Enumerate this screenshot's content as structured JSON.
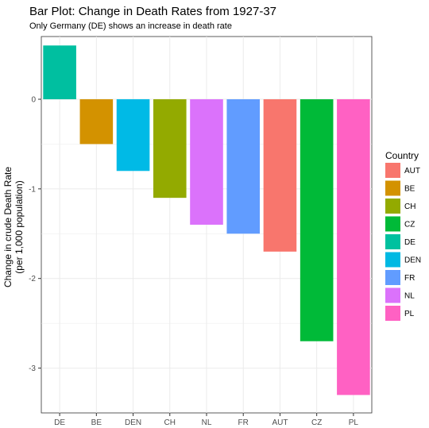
{
  "chart_data": {
    "type": "bar",
    "title": "Bar  Plot: Change in Death Rates from 1927-37",
    "subtitle": "Only Germany (DE) shows an increase in death rate",
    "ylabel_lines": [
      "Change in crude Death Rate",
      "(per 1,000 population)"
    ],
    "xlabel": "",
    "ylim": [
      -3.5,
      0.7
    ],
    "yticks": [
      0,
      -1,
      -2,
      -3
    ],
    "ytick_labels": [
      "0",
      "-1",
      "-2",
      "-3"
    ],
    "grid": true,
    "categories": [
      "DE",
      "BE",
      "DEN",
      "CH",
      "NL",
      "FR",
      "AUT",
      "CZ",
      "PL"
    ],
    "values": [
      0.6,
      -0.5,
      -0.8,
      -1.1,
      -1.4,
      -1.5,
      -1.7,
      -2.7,
      -3.3
    ],
    "bar_colors": [
      "#00BFA0",
      "#D39200",
      "#00BAE6",
      "#93AA00",
      "#DB72FB",
      "#619CFF",
      "#F8766D",
      "#00BA38",
      "#FF61C3"
    ],
    "legend": {
      "title": "Country",
      "position": "right",
      "items": [
        {
          "label": "AUT",
          "color": "#F8766D"
        },
        {
          "label": "BE",
          "color": "#D39200"
        },
        {
          "label": "CH",
          "color": "#93AA00"
        },
        {
          "label": "CZ",
          "color": "#00BA38"
        },
        {
          "label": "DE",
          "color": "#00C19F"
        },
        {
          "label": "DEN",
          "color": "#00B9E3"
        },
        {
          "label": "FR",
          "color": "#619CFF"
        },
        {
          "label": "NL",
          "color": "#DB72FB"
        },
        {
          "label": "PL",
          "color": "#FF61C3"
        }
      ]
    }
  }
}
